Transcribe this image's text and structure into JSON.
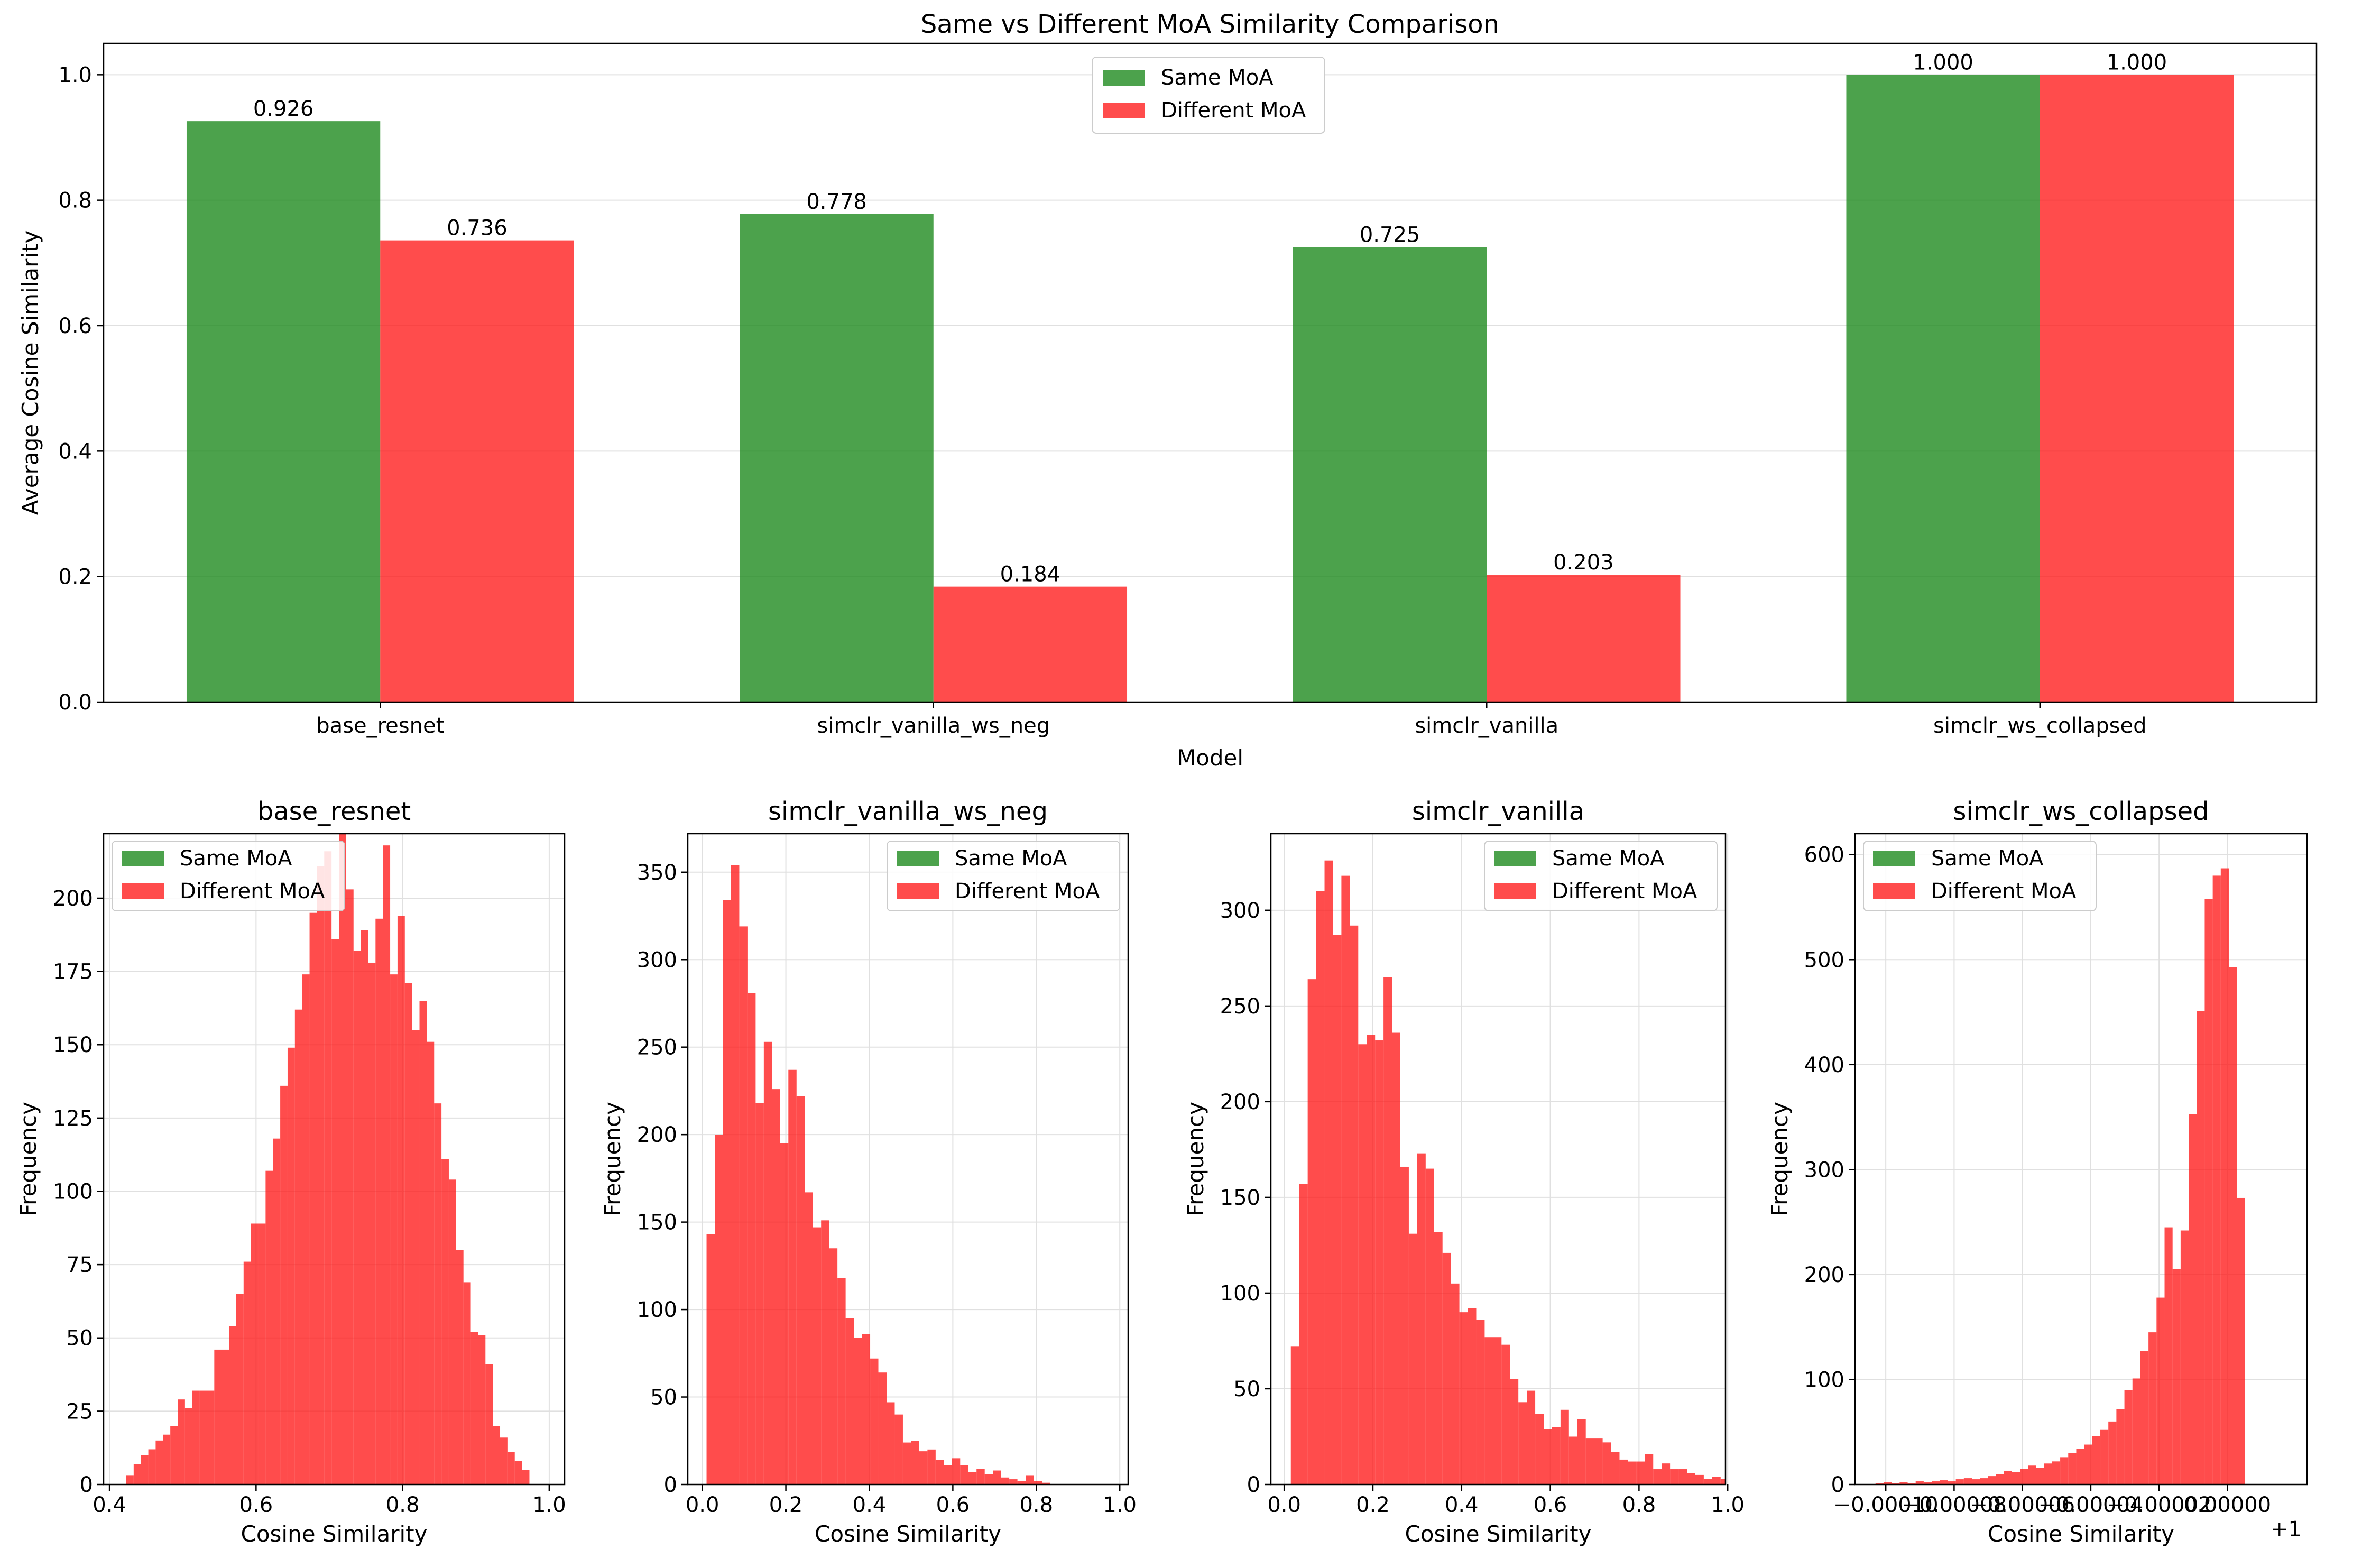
{
  "chart_data": [
    {
      "type": "bar",
      "title": "Same vs Different MoA Similarity Comparison",
      "xlabel": "Model",
      "ylabel": "Average Cosine Similarity",
      "categories": [
        "base_resnet",
        "simclr_vanilla_ws_neg",
        "simclr_vanilla",
        "simclr_ws_collapsed"
      ],
      "series": [
        {
          "name": "Same MoA",
          "color": "#1f8b1f",
          "values": [
            0.926,
            0.778,
            0.725,
            1.0
          ],
          "labels": [
            "0.926",
            "0.778",
            "0.725",
            "1.000"
          ]
        },
        {
          "name": "Different MoA",
          "color": "#ff1a1a",
          "values": [
            0.736,
            0.184,
            0.203,
            1.0
          ],
          "labels": [
            "0.736",
            "0.184",
            "0.203",
            "1.000"
          ]
        }
      ],
      "ylim": [
        0,
        1.05
      ],
      "yticks": [
        0.0,
        0.2,
        0.4,
        0.6,
        0.8,
        1.0
      ],
      "ytick_labels": [
        "0.0",
        "0.2",
        "0.4",
        "0.6",
        "0.8",
        "1.0"
      ],
      "grid": true,
      "legend": "top-center"
    },
    {
      "type": "histogram",
      "title": "base_resnet",
      "xlabel": "Cosine Similarity",
      "ylabel": "Frequency",
      "xlim": [
        0.392,
        1.021
      ],
      "ylim": [
        0,
        222
      ],
      "xticks": [
        0.4,
        0.6,
        0.8,
        1.0
      ],
      "xtick_labels": [
        "0.4",
        "0.6",
        "0.8",
        "1.0"
      ],
      "yticks": [
        0,
        25,
        50,
        75,
        100,
        125,
        150,
        175,
        200
      ],
      "ytick_labels": [
        "0",
        "25",
        "50",
        "75",
        "100",
        "125",
        "150",
        "175",
        "200"
      ],
      "legend": "top-left",
      "series": [
        {
          "name": "Same MoA",
          "bin_start": 0.423,
          "bin_width": 0.01,
          "counts": [
            0,
            0,
            0,
            0,
            0,
            0,
            0,
            0,
            0,
            0,
            0,
            0,
            0,
            0,
            0,
            0,
            0,
            0,
            0,
            0,
            0,
            0,
            0,
            0,
            0,
            0,
            0,
            0,
            0,
            0,
            0,
            0,
            0,
            0,
            0,
            0,
            0,
            0,
            0,
            0,
            0,
            0,
            0,
            0,
            0,
            0,
            0,
            0,
            0,
            0,
            0,
            0,
            0,
            0,
            0,
            0,
            0,
            0,
            0,
            0,
            0,
            0,
            0,
            0,
            0,
            0,
            0,
            0,
            0,
            0,
            0,
            0,
            0,
            0,
            0,
            0,
            0,
            0,
            0,
            0,
            0,
            0,
            0,
            0,
            0,
            0,
            0,
            0,
            0,
            0,
            0,
            0,
            0,
            0,
            0,
            0,
            0,
            0,
            0,
            0,
            0,
            0,
            0,
            0,
            0,
            0,
            0,
            0,
            0,
            0,
            0,
            0,
            0,
            0,
            0,
            0,
            0,
            0,
            0,
            0,
            0,
            0,
            0,
            0,
            0,
            0,
            0,
            0,
            0,
            0,
            0,
            0,
            0,
            0,
            0,
            0,
            0,
            0,
            0,
            0,
            0,
            0,
            0,
            0,
            0,
            0,
            0,
            0,
            0,
            0,
            0,
            0,
            0,
            0,
            0,
            0,
            0,
            0,
            0,
            0,
            0,
            0,
            0,
            0,
            0,
            0,
            0,
            0,
            0,
            0,
            0,
            0,
            0,
            0,
            0,
            0,
            0,
            0,
            0,
            0,
            0,
            0,
            0,
            0,
            0,
            0,
            0,
            0,
            0,
            0,
            0,
            0,
            0,
            0,
            0,
            0,
            0,
            0,
            0,
            0,
            0,
            0
          ]
        },
        {
          "name": "Different MoA",
          "bin_start": 0.423,
          "bin_width": 0.01,
          "counts": [
            3,
            7,
            10,
            12,
            15,
            17,
            20,
            29,
            26,
            32,
            32,
            32,
            46,
            46,
            54,
            65,
            76,
            89,
            89,
            107,
            118,
            136,
            149,
            162,
            174,
            195,
            211,
            216,
            186,
            226,
            203,
            182,
            189,
            178,
            193,
            218,
            174,
            194,
            171,
            155,
            165,
            151,
            130,
            111,
            104,
            80,
            69,
            52,
            51,
            41,
            20,
            16,
            11,
            8,
            5,
            0,
            0,
            0,
            0
          ]
        }
      ]
    },
    {
      "type": "histogram",
      "title": "simclr_vanilla_ws_neg",
      "xlabel": "Cosine Similarity",
      "ylabel": "Frequency",
      "xlim": [
        -0.035,
        1.02
      ],
      "ylim": [
        0,
        372
      ],
      "xticks": [
        0.0,
        0.2,
        0.4,
        0.6,
        0.8,
        1.0
      ],
      "xtick_labels": [
        "0.0",
        "0.2",
        "0.4",
        "0.6",
        "0.8",
        "1.0"
      ],
      "yticks": [
        0,
        50,
        100,
        150,
        200,
        250,
        300,
        350
      ],
      "ytick_labels": [
        "0",
        "50",
        "100",
        "150",
        "200",
        "250",
        "300",
        "350"
      ],
      "legend": "top-right",
      "series": [
        {
          "name": "Same MoA",
          "bin_start": 0.01,
          "bin_width": 0.0196,
          "counts": []
        },
        {
          "name": "Different MoA",
          "bin_start": 0.01,
          "bin_width": 0.0196,
          "counts": [
            143,
            200,
            334,
            354,
            319,
            281,
            218,
            253,
            226,
            195,
            237,
            222,
            167,
            147,
            151,
            135,
            118,
            95,
            84,
            86,
            72,
            64,
            47,
            40,
            24,
            25,
            19,
            20,
            14,
            11,
            15,
            11,
            7,
            9,
            6,
            8,
            4,
            3,
            2,
            5,
            2,
            1,
            0,
            0,
            0,
            0,
            0,
            0,
            0,
            0
          ]
        }
      ]
    },
    {
      "type": "histogram",
      "title": "simclr_vanilla",
      "xlabel": "Cosine Similarity",
      "ylabel": "Frequency",
      "xlim": [
        -0.03,
        0.995
      ],
      "ylim": [
        0,
        340
      ],
      "xticks": [
        0.0,
        0.2,
        0.4,
        0.6,
        0.8,
        1.0
      ],
      "xtick_labels": [
        "0.0",
        "0.2",
        "0.4",
        "0.6",
        "0.8",
        "1.0"
      ],
      "yticks": [
        0,
        50,
        100,
        150,
        200,
        250,
        300
      ],
      "ytick_labels": [
        "0",
        "50",
        "100",
        "150",
        "200",
        "250",
        "300"
      ],
      "legend": "top-right",
      "series": [
        {
          "name": "Same MoA",
          "bin_start": 0.015,
          "bin_width": 0.019,
          "counts": []
        },
        {
          "name": "Different MoA",
          "bin_start": 0.015,
          "bin_width": 0.019,
          "counts": [
            72,
            157,
            264,
            310,
            326,
            287,
            318,
            292,
            230,
            235,
            232,
            265,
            236,
            166,
            131,
            173,
            165,
            132,
            121,
            105,
            90,
            92,
            86,
            77,
            77,
            73,
            55,
            43,
            49,
            37,
            29,
            30,
            39,
            25,
            34,
            24,
            24,
            22,
            17,
            13,
            12,
            12,
            16,
            8,
            11,
            8,
            8,
            6,
            5,
            3,
            4,
            3
          ]
        }
      ]
    },
    {
      "type": "histogram",
      "title": "simclr_ws_collapsed",
      "xlabel": "Cosine Similarity",
      "ylabel": "Frequency",
      "xlim": [
        -0.000109,
        2.33e-05
      ],
      "ylim": [
        0,
        620
      ],
      "xticks": [
        -0.0001,
        -8e-05,
        -6e-05,
        -4e-05,
        -2e-05,
        0.0
      ],
      "xtick_labels": [
        "−0.00010",
        "−0.00008",
        "−0.00006",
        "−0.00004",
        "−0.00002",
        "0.00000"
      ],
      "x_offset_label": "+1",
      "yticks": [
        0,
        100,
        200,
        300,
        400,
        500,
        600
      ],
      "ytick_labels": [
        "0",
        "100",
        "200",
        "300",
        "400",
        "500",
        "600"
      ],
      "legend": "top-left",
      "series": [
        {
          "name": "Same MoA",
          "bin_start": -0.000103,
          "bin_width": 2.35e-06,
          "counts": []
        },
        {
          "name": "Different MoA",
          "bin_start": -0.000103,
          "bin_width": 2.35e-06,
          "counts": [
            1,
            2,
            1,
            2,
            1,
            3,
            2,
            3,
            4,
            3,
            5,
            6,
            5,
            6,
            8,
            10,
            13,
            12,
            15,
            18,
            16,
            20,
            22,
            26,
            30,
            34,
            38,
            46,
            52,
            60,
            72,
            90,
            101,
            127,
            145,
            178,
            245,
            205,
            242,
            353,
            451,
            558,
            580,
            587,
            493,
            273
          ]
        }
      ]
    }
  ]
}
